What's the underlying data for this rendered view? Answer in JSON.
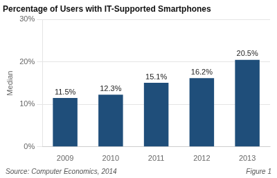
{
  "chart_data": {
    "type": "bar",
    "title": "Percentage of Users with IT-Supported Smartphones",
    "ylabel": "Median",
    "categories": [
      "2009",
      "2010",
      "2011",
      "2012",
      "2013"
    ],
    "values": [
      11.5,
      12.3,
      15.1,
      16.2,
      20.5
    ],
    "value_labels": [
      "11.5%",
      "12.3%",
      "15.1%",
      "16.2%",
      "20.5%"
    ],
    "data_labels": true,
    "color": "#1F4E7A",
    "ylim": [
      0,
      30
    ],
    "yticks": [
      {
        "value": 0,
        "label": "0%"
      },
      {
        "value": 10,
        "label": "10%"
      },
      {
        "value": 20,
        "label": "20%"
      },
      {
        "value": 30,
        "label": "30%"
      }
    ],
    "grid": true,
    "annotations": [
      "Source: Computer Economics, 2014",
      "Figure 1"
    ]
  }
}
